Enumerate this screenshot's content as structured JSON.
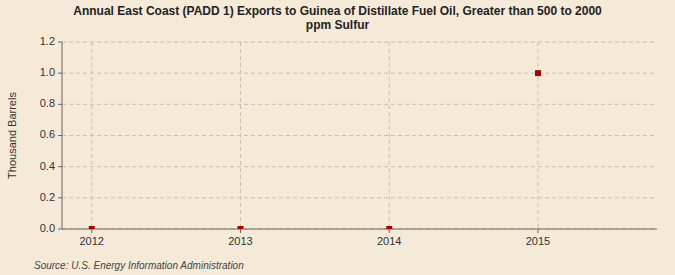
{
  "chart_data": {
    "type": "scatter",
    "title": "Annual East Coast (PADD 1) Exports to Guinea of Distillate Fuel Oil, Greater than 500 to 2000\nppm Sulfur",
    "y_label": "Thousand Barrels",
    "annotation": "Source: U.S. Energy Information Administration",
    "x": [
      2012,
      2013,
      2014,
      2015
    ],
    "values": [
      0,
      0,
      0,
      1.0
    ],
    "color": "#aa0000",
    "marker": "square",
    "xlim": [
      2011.8,
      2015.8
    ],
    "xticks": [
      2012,
      2013,
      2014,
      2015
    ],
    "ylim": [
      0,
      1.2
    ],
    "yticks": [
      {
        "value": 0.0,
        "label": "0.0"
      },
      {
        "value": 0.2,
        "label": "0.2"
      },
      {
        "value": 0.4,
        "label": "0.4"
      },
      {
        "value": 0.6,
        "label": "0.6"
      },
      {
        "value": 0.8,
        "label": "0.8"
      },
      {
        "value": 1.0,
        "label": "1.0"
      },
      {
        "value": 1.2,
        "label": "1.2"
      }
    ],
    "grid": true
  }
}
